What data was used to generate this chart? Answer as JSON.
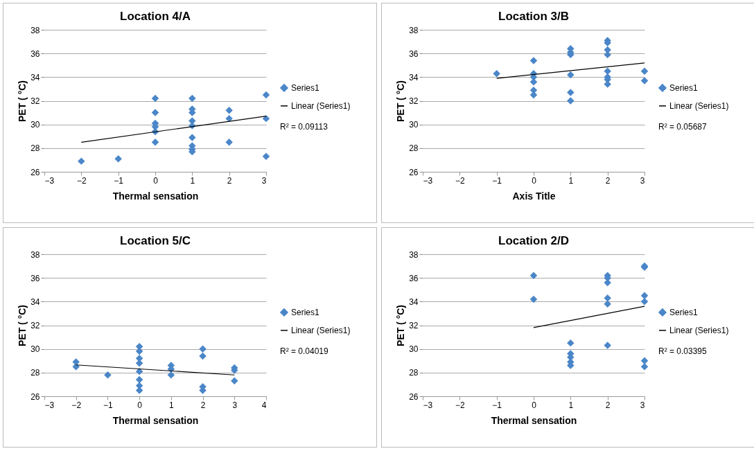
{
  "chart_data": [
    {
      "type": "scatter",
      "title": "Location 4/A",
      "xlabel": "Thermal sensation",
      "ylabel": "PET ( °C)",
      "xlim": [
        -3,
        3
      ],
      "xticks": [
        -3,
        -2,
        -1,
        0,
        1,
        2,
        3
      ],
      "ylim": [
        26,
        38
      ],
      "yticks": [
        26,
        28,
        30,
        32,
        34,
        36,
        38
      ],
      "grid": "y",
      "legend": "right",
      "annotations": [
        "R² = 0.09113"
      ],
      "series": [
        {
          "name": "Series1",
          "type": "scatter",
          "marker": "diamond",
          "color": "#4a86c8",
          "x": [
            -2,
            -1,
            0,
            0,
            0,
            0,
            0,
            0,
            1,
            1,
            1,
            1,
            1,
            1,
            1,
            1,
            1,
            2,
            2,
            2,
            3,
            3,
            3
          ],
          "values": [
            26.9,
            27.1,
            32.2,
            31.0,
            30.1,
            29.8,
            29.4,
            28.5,
            32.2,
            31.3,
            31.0,
            30.3,
            29.9,
            28.9,
            28.2,
            27.9,
            27.7,
            31.2,
            30.5,
            28.5,
            32.5,
            30.5,
            27.3
          ]
        },
        {
          "name": "Linear (Series1)",
          "type": "line",
          "color": "#000000",
          "x": [
            -2,
            3
          ],
          "values": [
            28.5,
            30.7
          ]
        }
      ]
    },
    {
      "type": "scatter",
      "title": "Location 3/B",
      "xlabel": "Axis Title",
      "ylabel": "PET ( °C)",
      "xlim": [
        -3,
        3
      ],
      "xticks": [
        -3,
        -2,
        -1,
        0,
        1,
        2,
        3
      ],
      "ylim": [
        26,
        38
      ],
      "yticks": [
        26,
        28,
        30,
        32,
        34,
        36,
        38
      ],
      "grid": "y",
      "legend": "right",
      "annotations": [
        "R² = 0.05687"
      ],
      "series": [
        {
          "name": "Series1",
          "type": "scatter",
          "marker": "diamond",
          "color": "#4a86c8",
          "x": [
            -1,
            0,
            0,
            0,
            0,
            0,
            0,
            1,
            1,
            1,
            1,
            1,
            1,
            2,
            2,
            2,
            2,
            2,
            2,
            2,
            2,
            3,
            3
          ],
          "values": [
            34.3,
            35.4,
            34.3,
            34.0,
            33.6,
            32.9,
            32.5,
            36.4,
            36.1,
            35.9,
            34.2,
            32.7,
            32.0,
            37.1,
            36.9,
            36.3,
            35.9,
            34.5,
            34.0,
            33.8,
            33.4,
            34.5,
            33.7
          ]
        },
        {
          "name": "Linear (Series1)",
          "type": "line",
          "color": "#000000",
          "x": [
            -1,
            3
          ],
          "values": [
            33.9,
            35.2
          ]
        }
      ]
    },
    {
      "type": "scatter",
      "title": "Location 5/C",
      "xlabel": "Thermal sensation",
      "ylabel": "PET ( °C)",
      "xlim": [
        -3,
        4
      ],
      "xticks": [
        -3,
        -2,
        -1,
        0,
        1,
        2,
        3,
        4
      ],
      "ylim": [
        26,
        38
      ],
      "yticks": [
        26,
        28,
        30,
        32,
        34,
        36,
        38
      ],
      "grid": "y",
      "legend": "right",
      "annotations": [
        "R² = 0.04019"
      ],
      "series": [
        {
          "name": "Series1",
          "type": "scatter",
          "marker": "diamond",
          "color": "#4a86c8",
          "x": [
            -2,
            -2,
            -1,
            0,
            0,
            0,
            0,
            0,
            0,
            0,
            0,
            1,
            1,
            1,
            2,
            2,
            2,
            2,
            3,
            3,
            3
          ],
          "values": [
            28.9,
            28.5,
            27.8,
            30.2,
            29.8,
            29.2,
            28.8,
            28.1,
            27.4,
            26.9,
            26.5,
            28.6,
            28.3,
            27.8,
            30.0,
            29.4,
            26.8,
            26.5,
            28.4,
            28.2,
            27.3
          ]
        },
        {
          "name": "Linear (Series1)",
          "type": "line",
          "color": "#000000",
          "x": [
            -2,
            3
          ],
          "values": [
            28.65,
            27.8
          ]
        }
      ]
    },
    {
      "type": "scatter",
      "title": "Location 2/D",
      "xlabel": "Thermal sensation",
      "ylabel": "PET ( °C)",
      "xlim": [
        -3,
        3
      ],
      "xticks": [
        -3,
        -2,
        -1,
        0,
        1,
        2,
        3
      ],
      "ylim": [
        26,
        38
      ],
      "yticks": [
        26,
        28,
        30,
        32,
        34,
        36,
        38
      ],
      "grid": "y",
      "legend": "right",
      "annotations": [
        "R² = 0.03395"
      ],
      "series": [
        {
          "name": "Series1",
          "type": "scatter",
          "marker": "diamond",
          "color": "#4a86c8",
          "x": [
            0,
            0,
            1,
            1,
            1,
            1,
            1,
            2,
            2,
            2,
            2,
            2,
            2,
            3,
            3,
            3,
            3,
            3,
            3
          ],
          "values": [
            36.2,
            34.2,
            30.5,
            29.6,
            29.3,
            28.9,
            28.6,
            36.2,
            36.0,
            35.6,
            34.3,
            33.8,
            30.3,
            37.0,
            36.9,
            34.5,
            34.0,
            29.0,
            28.5
          ]
        },
        {
          "name": "Linear (Series1)",
          "type": "line",
          "color": "#000000",
          "x": [
            0,
            3
          ],
          "values": [
            31.8,
            33.6
          ]
        }
      ]
    }
  ]
}
